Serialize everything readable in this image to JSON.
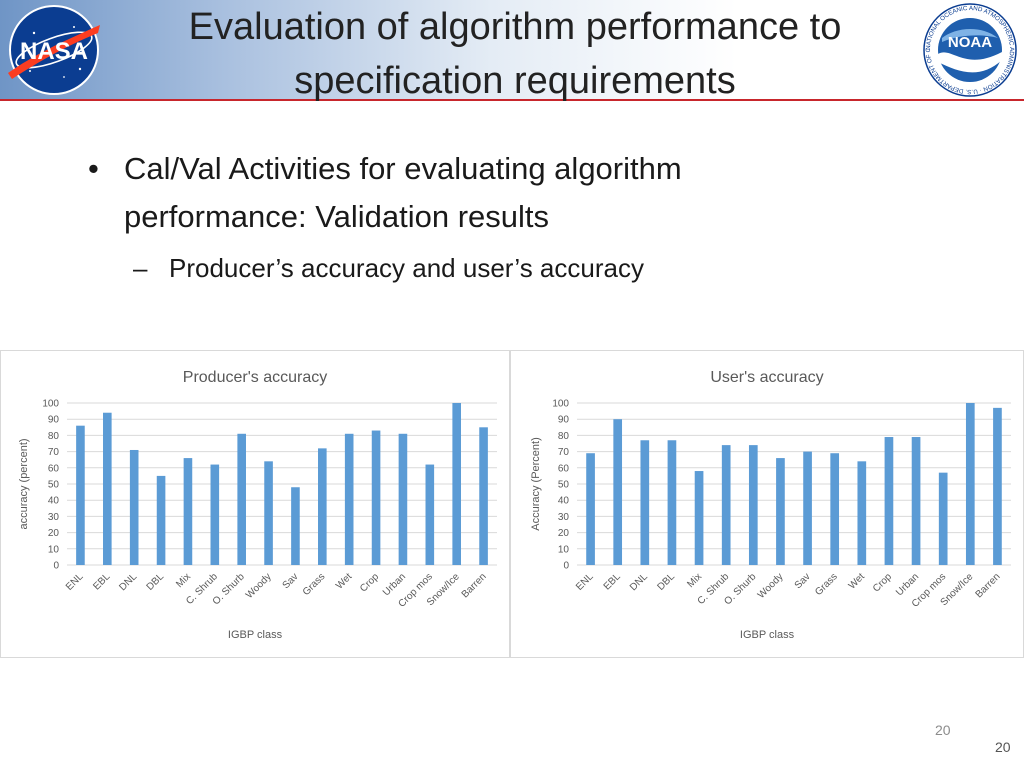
{
  "slide": {
    "title": "Evaluation of algorithm performance to specification requirements",
    "bullet1": "Cal/Val Activities for evaluating algorithm performance: Validation results",
    "bullet2": "Producer’s accuracy and user’s accuracy",
    "bullet_symbol": "•",
    "dash_symbol": "–",
    "slide_number_inner": "20",
    "slide_number_outer": "20",
    "logos": {
      "nasa_text": "NASA",
      "noaa_text": "NOAA",
      "noaa_ring_text": "NATIONAL OCEANIC AND ATMOSPHERIC ADMINISTRATION · U.S. DEPARTMENT OF COMMERCE ·"
    }
  },
  "colors": {
    "bar": "#5b9bd5",
    "grid": "#d9d9d9",
    "axis_text": "#595959",
    "chart_title": "#595959",
    "header_rule": "#c8262c"
  },
  "chart_data": [
    {
      "type": "bar",
      "title": "Producer's accuracy",
      "xlabel": "IGBP class",
      "ylabel": "accuracy (percent)",
      "ylim": [
        0,
        100
      ],
      "yticks": [
        0,
        10,
        20,
        30,
        40,
        50,
        60,
        70,
        80,
        90,
        100
      ],
      "grid": true,
      "categories": [
        "ENL",
        "EBL",
        "DNL",
        "DBL",
        "Mix",
        "C. Shrub",
        "O. Shurb",
        "Woody",
        "Sav",
        "Grass",
        "Wet",
        "Crop",
        "Urban",
        "Crop mos",
        "Snow/Ice",
        "Barren"
      ],
      "values": [
        86,
        94,
        71,
        55,
        66,
        62,
        81,
        64,
        48,
        72,
        81,
        83,
        81,
        62,
        100,
        85
      ]
    },
    {
      "type": "bar",
      "title": "User's accuracy",
      "xlabel": "IGBP class",
      "ylabel": "Accuracy (Percent)",
      "ylim": [
        0,
        100
      ],
      "yticks": [
        0,
        10,
        20,
        30,
        40,
        50,
        60,
        70,
        80,
        90,
        100
      ],
      "grid": true,
      "categories": [
        "ENL",
        "EBL",
        "DNL",
        "DBL",
        "Mix",
        "C. Shrub",
        "O. Shurb",
        "Woody",
        "Sav",
        "Grass",
        "Wet",
        "Crop",
        "Urban",
        "Crop mos",
        "Snow/Ice",
        "Barren"
      ],
      "values": [
        69,
        90,
        77,
        77,
        58,
        74,
        74,
        66,
        70,
        69,
        64,
        79,
        79,
        57,
        100,
        97
      ]
    }
  ]
}
